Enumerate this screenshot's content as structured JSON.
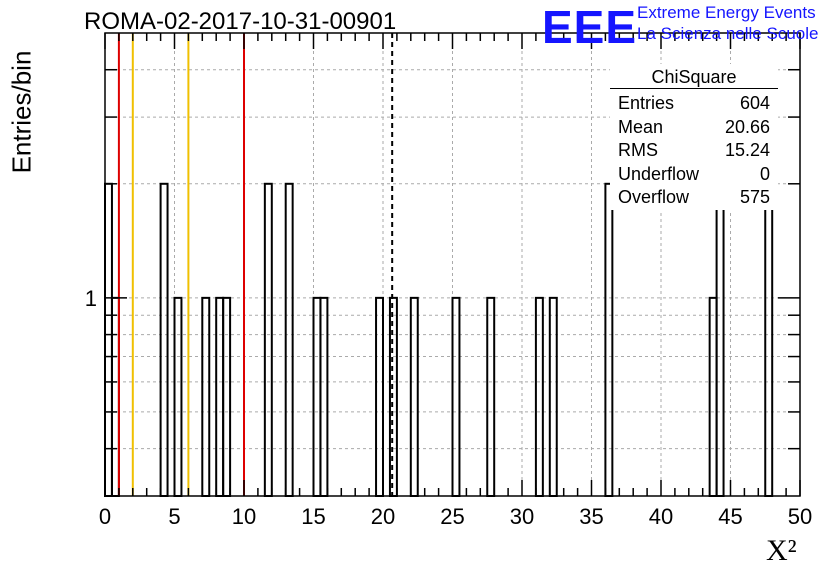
{
  "header": {
    "title": "ROMA-02-2017-10-31-00901",
    "logo_text": "EEE",
    "logo_line1": "Extreme Energy Events",
    "logo_line2": "La Scienza nelle Scuole"
  },
  "stats_box": {
    "title": "ChiSquare",
    "rows": [
      {
        "label": "Entries",
        "value": "604"
      },
      {
        "label": "Mean",
        "value": "20.66"
      },
      {
        "label": "RMS",
        "value": "15.24"
      },
      {
        "label": "Underflow",
        "value": "0"
      },
      {
        "label": "Overflow",
        "value": "575"
      }
    ]
  },
  "colors": {
    "red_line": "#dd0000",
    "yellow_line": "#f0c000",
    "logo_blue": "#1515ff",
    "grid": "#aaaaaa"
  },
  "chart_data": {
    "type": "histogram",
    "title": "ROMA-02-2017-10-31-00901",
    "xlabel": "X²",
    "ylabel": "Entries/bin",
    "xlim": [
      0,
      50
    ],
    "ylim": [
      0.3,
      5
    ],
    "yscale": "log",
    "bin_width": 0.5,
    "x_ticks": [
      "0",
      "5",
      "10",
      "15",
      "20",
      "25",
      "30",
      "35",
      "40",
      "45",
      "50"
    ],
    "y_tick_labels": [
      {
        "value": 1,
        "label": "1"
      }
    ],
    "grid": true,
    "bins": [
      {
        "x": 0.0,
        "count": 2
      },
      {
        "x": 0.5,
        "count": 1
      },
      {
        "x": 4.0,
        "count": 2
      },
      {
        "x": 5.0,
        "count": 1
      },
      {
        "x": 7.0,
        "count": 1
      },
      {
        "x": 8.0,
        "count": 1
      },
      {
        "x": 8.5,
        "count": 1
      },
      {
        "x": 11.5,
        "count": 2
      },
      {
        "x": 13.0,
        "count": 2
      },
      {
        "x": 15.0,
        "count": 1
      },
      {
        "x": 15.5,
        "count": 1
      },
      {
        "x": 19.5,
        "count": 1
      },
      {
        "x": 20.5,
        "count": 1
      },
      {
        "x": 22.0,
        "count": 1
      },
      {
        "x": 25.0,
        "count": 1
      },
      {
        "x": 27.5,
        "count": 1
      },
      {
        "x": 31.0,
        "count": 1
      },
      {
        "x": 32.0,
        "count": 1
      },
      {
        "x": 36.0,
        "count": 2
      },
      {
        "x": 43.5,
        "count": 1
      },
      {
        "x": 44.0,
        "count": 2
      },
      {
        "x": 47.5,
        "count": 2
      }
    ],
    "vertical_lines": [
      {
        "x": 1,
        "color": "#dd0000",
        "style": "solid"
      },
      {
        "x": 2,
        "color": "#f0c000",
        "style": "solid"
      },
      {
        "x": 6,
        "color": "#f0c000",
        "style": "solid"
      },
      {
        "x": 10,
        "color": "#dd0000",
        "style": "solid"
      },
      {
        "x": 20.66,
        "color": "#000000",
        "style": "dashed"
      }
    ]
  }
}
